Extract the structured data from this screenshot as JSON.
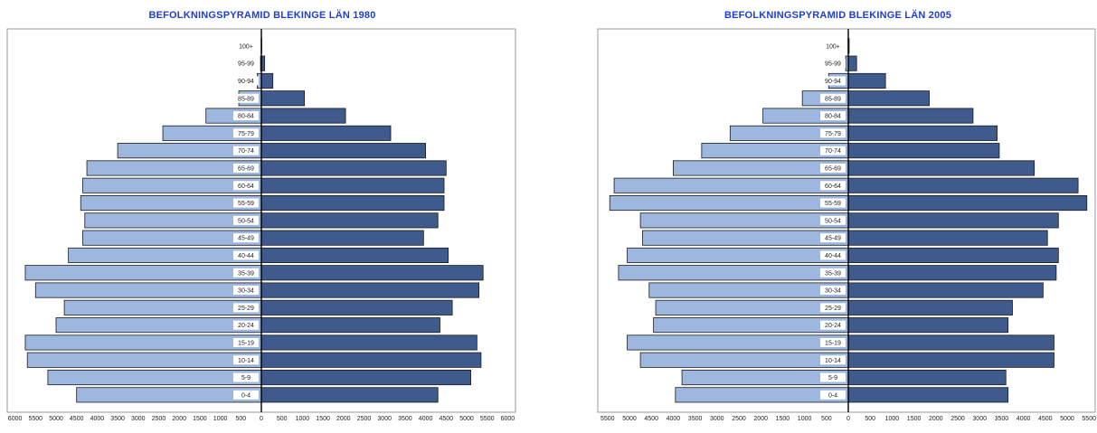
{
  "chart_data": [
    {
      "type": "bar",
      "title": "BEFOLKNINGSPYRAMID BLEKINGE LÄN 1980",
      "categories": [
        "0-4",
        "5-9",
        "10-14",
        "15-19",
        "20-24",
        "25-29",
        "30-34",
        "35-39",
        "40-44",
        "45-49",
        "50-54",
        "55-59",
        "60-64",
        "65-69",
        "70-74",
        "75-79",
        "80-84",
        "85-89",
        "90-94",
        "95-99",
        "100+"
      ],
      "series": [
        {
          "values": [
            4500,
            5200,
            5700,
            5750,
            5000,
            4800,
            5500,
            5750,
            4700,
            4350,
            4300,
            4400,
            4350,
            4250,
            3500,
            2400,
            1350,
            550,
            100,
            20,
            5
          ]
        },
        {
          "values": [
            4300,
            5100,
            5350,
            5250,
            4350,
            4650,
            5300,
            5400,
            4550,
            3950,
            4300,
            4450,
            4450,
            4500,
            4000,
            3150,
            2050,
            1050,
            280,
            80,
            10
          ]
        }
      ],
      "left_ticks": [
        "6000",
        "5500",
        "5000",
        "4500",
        "4000",
        "3500",
        "3000",
        "2500",
        "2000",
        "1500",
        "1000",
        "500",
        "0"
      ],
      "right_ticks": [
        "500",
        "1000",
        "1500",
        "2000",
        "2500",
        "3000",
        "3500",
        "4000",
        "4500",
        "5000",
        "5500",
        "6000"
      ],
      "xlim_left": 6000,
      "xlim_right": 6000,
      "colors": {
        "left": "#9db7df",
        "right": "#3f5a8c",
        "title": "#1f3fd0"
      }
    },
    {
      "type": "bar",
      "title": "BEFOLKNINGSPYRAMID BLEKINGE LÄN 2005",
      "categories": [
        "0-4",
        "5-9",
        "10-14",
        "15-19",
        "20-24",
        "25-29",
        "30-34",
        "35-39",
        "40-44",
        "45-49",
        "50-54",
        "55-59",
        "60-64",
        "65-69",
        "70-74",
        "75-79",
        "80-84",
        "85-89",
        "90-94",
        "95-99",
        "100+"
      ],
      "series": [
        {
          "values": [
            3950,
            3800,
            4750,
            5050,
            4450,
            4400,
            4550,
            5250,
            5050,
            4700,
            4750,
            5450,
            5350,
            4000,
            3350,
            2700,
            1950,
            1050,
            450,
            60,
            5
          ]
        },
        {
          "values": [
            3650,
            3600,
            4700,
            4700,
            3650,
            3750,
            4450,
            4750,
            4800,
            4550,
            4800,
            5450,
            5250,
            4250,
            3450,
            3400,
            2850,
            1850,
            850,
            190,
            20
          ]
        }
      ],
      "left_ticks": [
        "5500",
        "5000",
        "4500",
        "4000",
        "3500",
        "3000",
        "2500",
        "2000",
        "1500",
        "1000",
        "500",
        "0"
      ],
      "right_ticks": [
        "500",
        "1000",
        "1500",
        "2000",
        "2500",
        "3000",
        "3500",
        "4000",
        "4500",
        "5000",
        "5500"
      ],
      "xlim_left": 5750,
      "xlim_right": 5750,
      "colors": {
        "left": "#9db7df",
        "right": "#3f5a8c",
        "title": "#1f3fd0"
      }
    }
  ]
}
